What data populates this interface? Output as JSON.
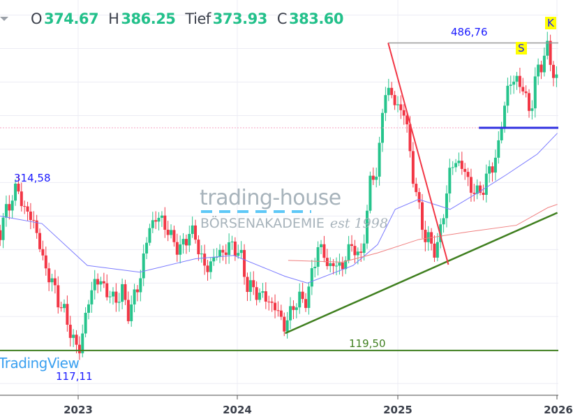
{
  "header": {
    "ohlc": [
      {
        "key": "O",
        "value": "374.67"
      },
      {
        "key": "H",
        "value": "386.25"
      },
      {
        "key": "Tief",
        "value": "373.93"
      },
      {
        "key": "C",
        "value": "383.60"
      }
    ]
  },
  "watermark": {
    "brand": "trading-house",
    "sub": "BÖRSENAKADEMIE",
    "est": "est 1998"
  },
  "tradingview_label": "TradingView",
  "colors": {
    "up": "#26c48c",
    "down": "#f23645",
    "ma_short": "#7b7bff",
    "ma_long": "#f08080",
    "trend_up": "#3f7f1f",
    "support": "#3f7f1f",
    "resistance_top": "#999999",
    "blue_level": "#3030e0"
  },
  "chart_data": {
    "type": "candlestick",
    "xaxis": {
      "type": "date",
      "range": [
        "2022-07-06",
        "2026-01-02"
      ],
      "ticks": [
        "2023",
        "2024",
        "2025",
        "2026"
      ]
    },
    "yaxis": {
      "scale": "linear",
      "range": [
        66,
        538
      ]
    },
    "grid": true,
    "price_path": [
      [
        "2022-07-06",
        263
      ],
      [
        "2022-07-30",
        300
      ],
      [
        "2022-08-15",
        313
      ],
      [
        "2022-08-31",
        288
      ],
      [
        "2022-09-24",
        271
      ],
      [
        "2022-10-10",
        230
      ],
      [
        "2022-11-11",
        188
      ],
      [
        "2022-12-13",
        146
      ],
      [
        "2022-12-26",
        121
      ],
      [
        "2023-01-06",
        125
      ],
      [
        "2023-01-22",
        171
      ],
      [
        "2023-02-07",
        204
      ],
      [
        "2023-03-03",
        196
      ],
      [
        "2023-03-19",
        179
      ],
      [
        "2023-04-12",
        188
      ],
      [
        "2023-04-28",
        163
      ],
      [
        "2023-05-22",
        204
      ],
      [
        "2023-06-15",
        271
      ],
      [
        "2023-07-09",
        279
      ],
      [
        "2023-08-02",
        254
      ],
      [
        "2023-08-26",
        238
      ],
      [
        "2023-09-11",
        263
      ],
      [
        "2023-09-27",
        254
      ],
      [
        "2023-10-21",
        213
      ],
      [
        "2023-11-06",
        230
      ],
      [
        "2023-11-30",
        238
      ],
      [
        "2023-12-24",
        246
      ],
      [
        "2024-01-09",
        230
      ],
      [
        "2024-01-25",
        196
      ],
      [
        "2024-02-18",
        188
      ],
      [
        "2024-03-13",
        179
      ],
      [
        "2024-04-06",
        163
      ],
      [
        "2024-04-19",
        146
      ],
      [
        "2024-05-08",
        175
      ],
      [
        "2024-06-09",
        183
      ],
      [
        "2024-07-03",
        246
      ],
      [
        "2024-07-27",
        221
      ],
      [
        "2024-08-28",
        221
      ],
      [
        "2024-09-21",
        250
      ],
      [
        "2024-10-07",
        221
      ],
      [
        "2024-10-31",
        321
      ],
      [
        "2024-11-16",
        338
      ],
      [
        "2024-12-02",
        429
      ],
      [
        "2024-12-10",
        433
      ],
      [
        "2024-12-26",
        413
      ],
      [
        "2025-01-17",
        404
      ],
      [
        "2025-02-02",
        338
      ],
      [
        "2025-02-18",
        288
      ],
      [
        "2025-03-06",
        254
      ],
      [
        "2025-03-30",
        238
      ],
      [
        "2025-04-15",
        279
      ],
      [
        "2025-05-01",
        338
      ],
      [
        "2025-05-25",
        346
      ],
      [
        "2025-06-10",
        321
      ],
      [
        "2025-07-04",
        304
      ],
      [
        "2025-07-28",
        329
      ],
      [
        "2025-08-21",
        363
      ],
      [
        "2025-09-06",
        429
      ],
      [
        "2025-09-30",
        446
      ],
      [
        "2025-10-16",
        429
      ],
      [
        "2025-11-01",
        404
      ],
      [
        "2025-11-17",
        454
      ],
      [
        "2025-12-11",
        479
      ],
      [
        "2025-12-27",
        446
      ],
      [
        "2026-01-02",
        438
      ]
    ],
    "ma_short": [
      [
        "2022-07-06",
        280
      ],
      [
        "2022-10-10",
        271
      ],
      [
        "2023-01-22",
        221
      ],
      [
        "2023-05-22",
        213
      ],
      [
        "2023-09-27",
        229
      ],
      [
        "2023-12-24",
        233
      ],
      [
        "2024-04-19",
        208
      ],
      [
        "2024-06-09",
        200
      ],
      [
        "2024-09-21",
        221
      ],
      [
        "2024-11-16",
        246
      ],
      [
        "2024-12-26",
        288
      ],
      [
        "2025-02-18",
        300
      ],
      [
        "2025-05-01",
        288
      ],
      [
        "2025-07-04",
        308
      ],
      [
        "2025-09-06",
        329
      ],
      [
        "2025-11-17",
        354
      ],
      [
        "2026-01-02",
        379
      ]
    ],
    "ma_long": [
      [
        "2024-04-26",
        227
      ],
      [
        "2024-08-28",
        225
      ],
      [
        "2024-11-16",
        236
      ],
      [
        "2025-02-18",
        252
      ],
      [
        "2025-06-10",
        261
      ],
      [
        "2025-09-30",
        269
      ],
      [
        "2025-12-11",
        290
      ],
      [
        "2026-01-02",
        294
      ]
    ],
    "lines": {
      "trend_support": [
        [
          "2024-04-19",
          140
        ],
        [
          "2026-01-02",
          284
        ]
      ],
      "downtrend": [
        [
          "2024-12-10",
          486.76
        ],
        [
          "2025-04-27",
          222
        ]
      ],
      "high_level": {
        "value": 486.76,
        "from": "2024-12-10"
      },
      "blue_level": {
        "value": 385.4,
        "from": "2025-07-06"
      },
      "support_level": {
        "value": 119.5
      }
    },
    "annotations": [
      {
        "text": "314,58",
        "date": "2022-08-15",
        "price": 314.58
      },
      {
        "text": "117,11",
        "date": "2022-12-26",
        "price": 117.11
      },
      {
        "text": "119,50",
        "price": 119.5
      },
      {
        "text": "486,76",
        "price": 486.76
      },
      {
        "text": "S",
        "marker": true
      },
      {
        "text": "K",
        "marker": true
      }
    ]
  }
}
